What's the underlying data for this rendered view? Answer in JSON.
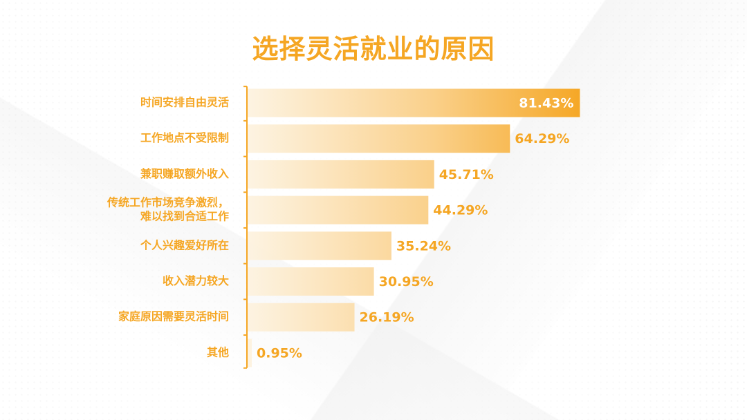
{
  "title": "选择灵活就业的原因",
  "colors": {
    "accent": "#F5A623",
    "bar_light": "#FDF3E1",
    "bar_dark": "#F5A623",
    "value_text": "#F5A623",
    "value_text_inside": "#FFFFFF"
  },
  "chart_data": {
    "type": "bar",
    "orientation": "horizontal",
    "title": "选择灵活就业的原因",
    "categories": [
      [
        "时间安排自由灵活"
      ],
      [
        "工作地点不受限制"
      ],
      [
        "兼职赚取额外收入"
      ],
      [
        "传统工作市场竞争激烈，",
        "难以找到合适工作"
      ],
      [
        "个人兴趣爱好所在"
      ],
      [
        "收入潜力较大"
      ],
      [
        "家庭原因需要灵活时间"
      ],
      [
        "其他"
      ]
    ],
    "values": [
      81.43,
      64.29,
      45.71,
      44.29,
      35.24,
      30.95,
      26.19,
      0.95
    ],
    "value_labels": [
      "81.43%",
      "64.29%",
      "45.71%",
      "44.29%",
      "35.24%",
      "30.95%",
      "26.19%",
      "0.95%"
    ],
    "unit": "%",
    "xlim": [
      0,
      100
    ],
    "grid": false,
    "legend": "none"
  }
}
